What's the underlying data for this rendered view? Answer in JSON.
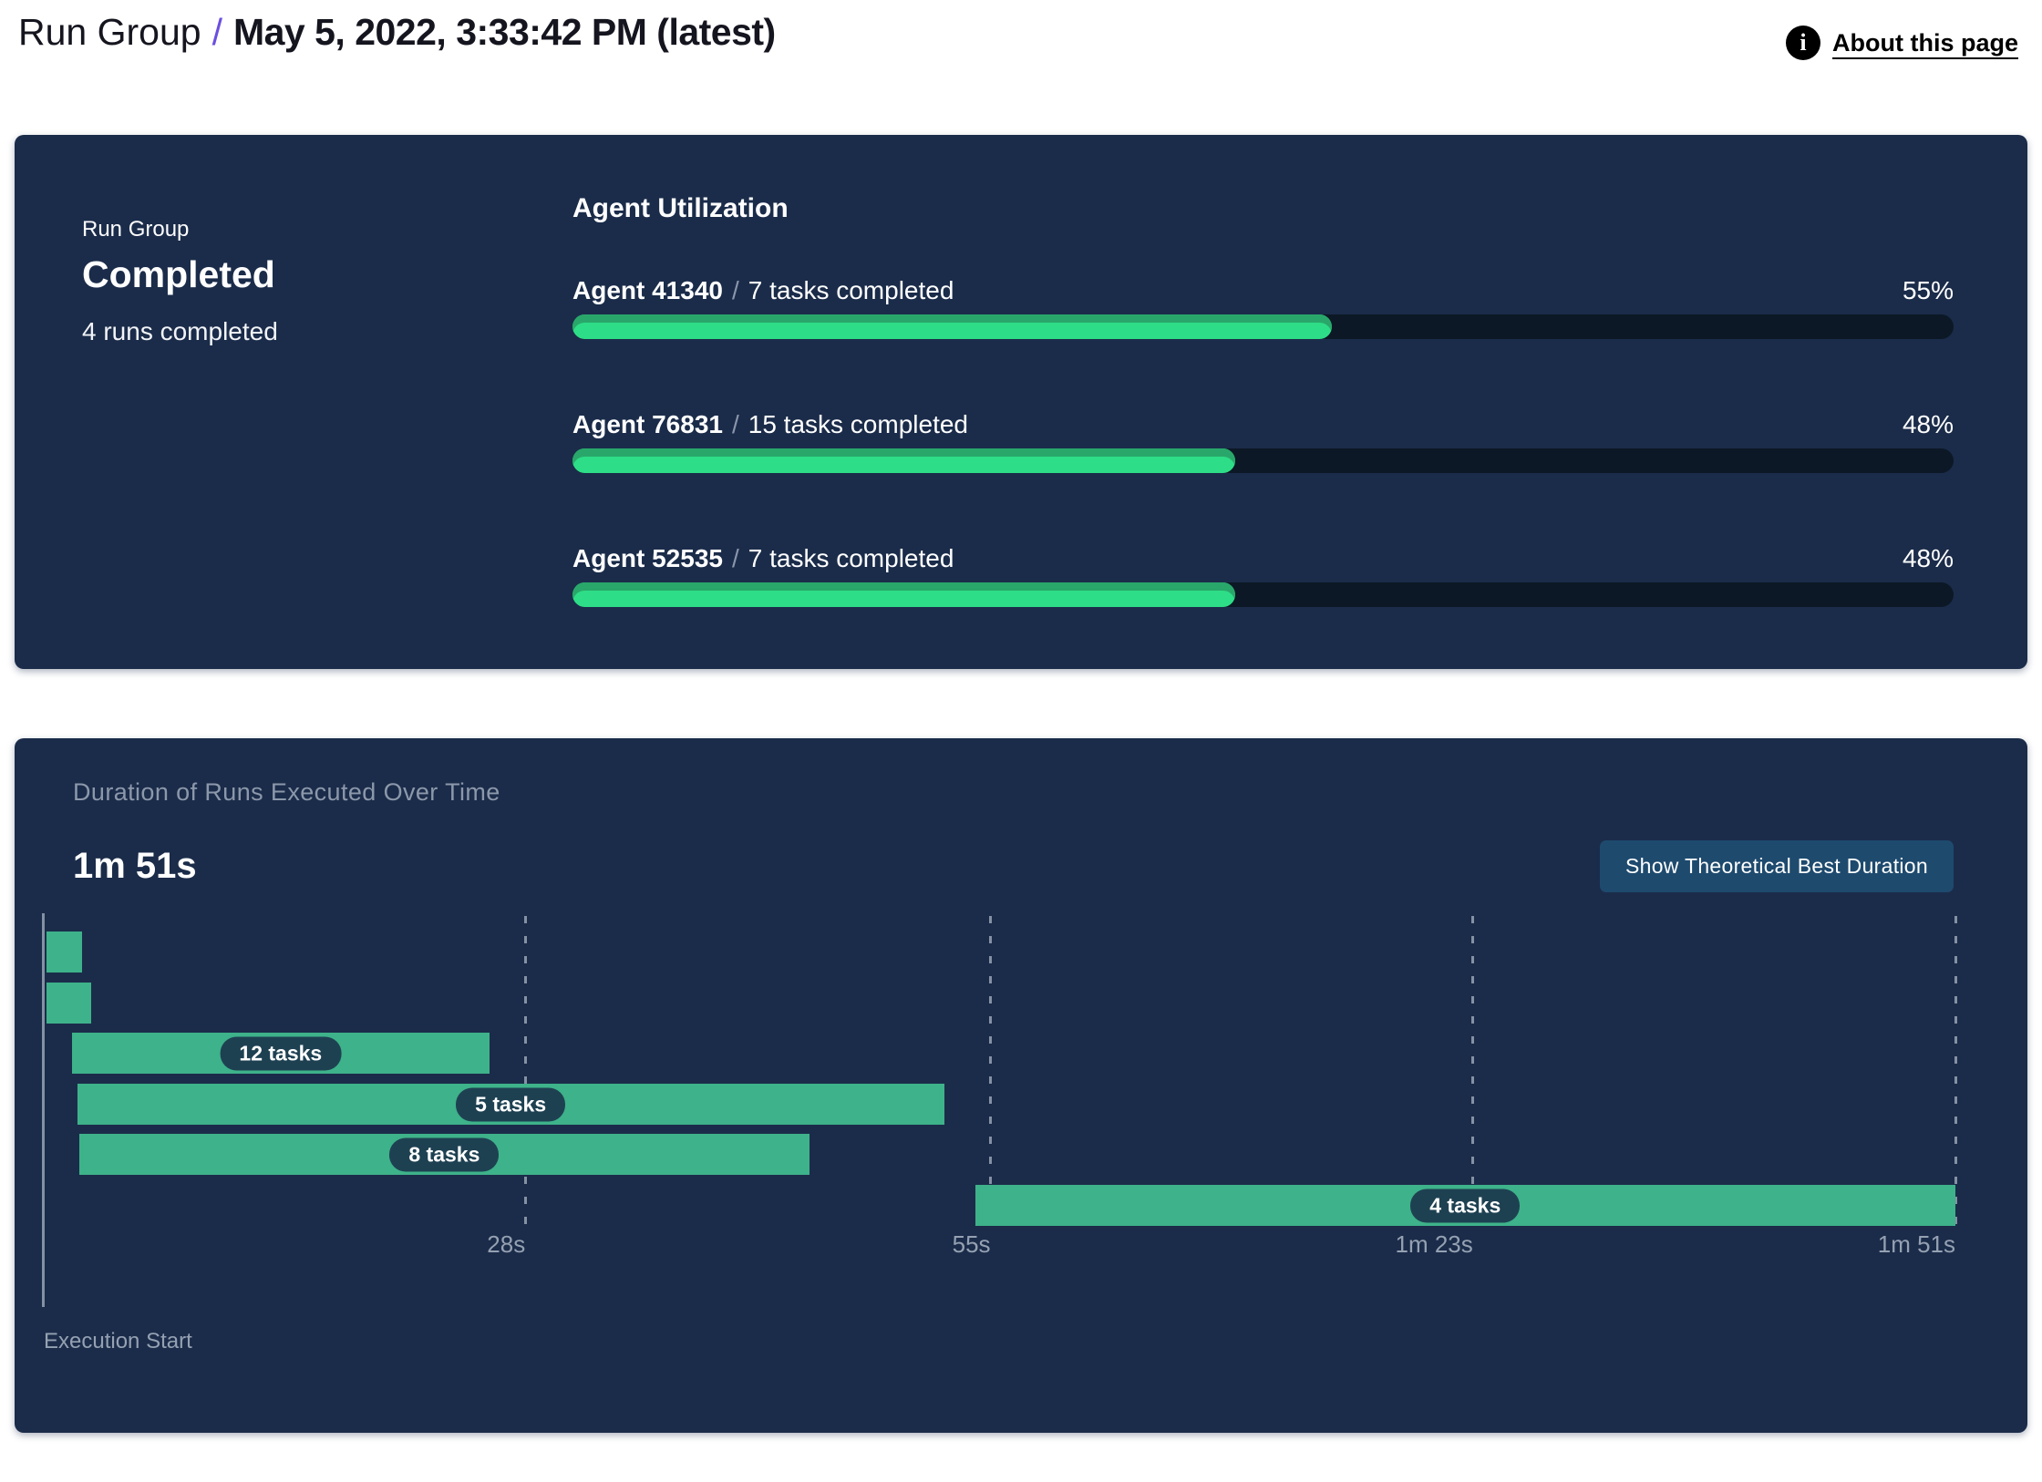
{
  "header": {
    "breadcrumb_root": "Run Group",
    "separator": "/",
    "title": "May 5, 2022, 3:33:42 PM (latest)",
    "about_link": "About this page"
  },
  "run_group_card": {
    "eyebrow": "Run Group",
    "status": "Completed",
    "runs_summary": "4 runs completed"
  },
  "agent_utilization": {
    "title": "Agent Utilization",
    "separator": "/",
    "agents": [
      {
        "name": "Agent 41340",
        "tasks": "7 tasks completed",
        "pct": 55,
        "pct_label": "55%"
      },
      {
        "name": "Agent 76831",
        "tasks": "15 tasks completed",
        "pct": 48,
        "pct_label": "48%"
      },
      {
        "name": "Agent 52535",
        "tasks": "7 tasks completed",
        "pct": 48,
        "pct_label": "48%"
      }
    ]
  },
  "duration_panel": {
    "title": "Duration of Runs Executed Over Time",
    "metric": "1m 51s",
    "button_label": "Show Theoretical Best Duration",
    "axis_label": "Execution Start"
  },
  "chart_data": {
    "type": "gantt",
    "title": "Duration of Runs Executed Over Time",
    "total_duration_label": "1m 51s",
    "x_range_seconds": [
      0,
      111
    ],
    "grid": "dashed-vertical",
    "x_ticks": [
      {
        "label": "28s",
        "seconds": 28
      },
      {
        "label": "55s",
        "seconds": 55
      },
      {
        "label": "1m 23s",
        "seconds": 83
      },
      {
        "label": "1m 51s",
        "seconds": 111
      }
    ],
    "bars": [
      {
        "label": "",
        "start_s": 0.2,
        "end_s": 2.3
      },
      {
        "label": "",
        "start_s": 0.2,
        "end_s": 2.8
      },
      {
        "label": "12 tasks",
        "start_s": 1.7,
        "end_s": 25.9
      },
      {
        "label": "5 tasks",
        "start_s": 2.0,
        "end_s": 52.3
      },
      {
        "label": "8 tasks",
        "start_s": 2.1,
        "end_s": 44.5
      },
      {
        "label": "4 tasks",
        "start_s": 54.1,
        "end_s": 111
      }
    ]
  },
  "colors": {
    "panel_bg": "#1B2C4A",
    "track_bg": "#0D1826",
    "progress_green": "#2EDD87",
    "progress_green_shade": "#29A76A",
    "gantt_teal": "#3EB28A",
    "pill_bg": "#1E4152",
    "button_bg": "#1E4A6E",
    "muted_text": "#95A1B2",
    "accent_purple": "#6C4FE0"
  }
}
